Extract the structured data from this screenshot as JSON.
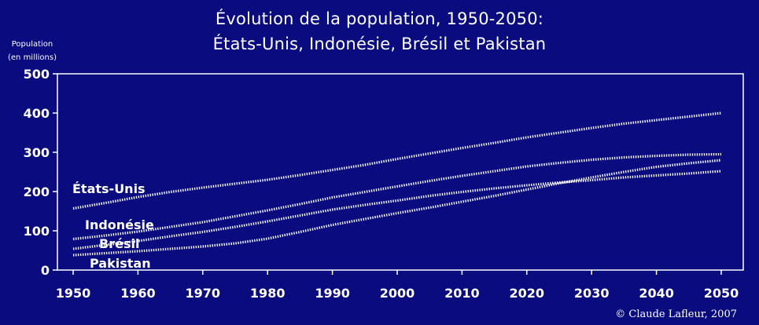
{
  "title_line1": "Évolution de la population, 1950-2050:",
  "title_line2": "États-Unis, Indonésie, Brésil et Pakistan",
  "ylabel_line1": "Population",
  "ylabel_line2": "(en millions)",
  "credit": "© Claude Lafleur, 2007",
  "chart_data": {
    "type": "line",
    "title": "Évolution de la population, 1950-2050: États-Unis, Indonésie, Brésil et Pakistan",
    "xlabel": "",
    "ylabel": "Population (en millions)",
    "xlim": [
      1950,
      2050
    ],
    "ylim": [
      0,
      500
    ],
    "x_ticks": [
      "1950",
      "1960",
      "1970",
      "1980",
      "1990",
      "2000",
      "2010",
      "2020",
      "2030",
      "2040",
      "2050"
    ],
    "y_ticks": [
      "0",
      "100",
      "200",
      "300",
      "400",
      "500"
    ],
    "grid": false,
    "line_color": "#ffffff",
    "x": [
      1950,
      1955,
      1960,
      1965,
      1970,
      1975,
      1980,
      1985,
      1990,
      1995,
      2000,
      2005,
      2010,
      2015,
      2020,
      2025,
      2030,
      2035,
      2040,
      2045,
      2050
    ],
    "series": [
      {
        "name": "États-Unis",
        "values": [
          157,
          171,
          186,
          199,
          210,
          220,
          230,
          242,
          255,
          268,
          283,
          297,
          311,
          324,
          338,
          350,
          362,
          373,
          382,
          391,
          400
        ]
      },
      {
        "name": "Indonésie",
        "values": [
          79,
          88,
          98,
          110,
          122,
          137,
          152,
          168,
          185,
          199,
          213,
          227,
          240,
          252,
          264,
          273,
          281,
          287,
          291,
          294,
          295
        ]
      },
      {
        "name": "Brésil",
        "values": [
          54,
          64,
          74,
          86,
          97,
          110,
          124,
          139,
          154,
          166,
          177,
          189,
          199,
          208,
          216,
          223,
          229,
          236,
          241,
          246,
          252
        ]
      },
      {
        "name": "Pakistan",
        "values": [
          38,
          43,
          48,
          54,
          60,
          68,
          80,
          97,
          115,
          130,
          145,
          159,
          174,
          189,
          205,
          221,
          236,
          250,
          263,
          272,
          280
        ]
      }
    ]
  }
}
